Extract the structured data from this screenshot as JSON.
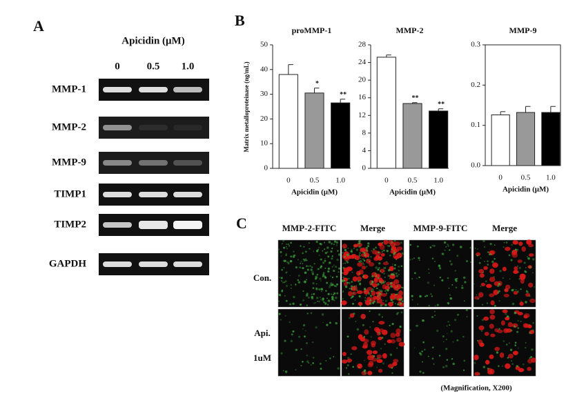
{
  "panel_a": {
    "label": "A",
    "treatment": "Apicidin (μM)",
    "lanes": [
      "0",
      "0.5",
      "1.0"
    ],
    "rows": [
      "MMP-1",
      "MMP-2",
      "MMP-9",
      "TIMP1",
      "TIMP2",
      "GAPDH"
    ]
  },
  "panel_b": {
    "label": "B",
    "ylabel": "Matrix metalloproteinase (ng/mL)"
  },
  "chart_data": [
    {
      "type": "bar",
      "title": "proMMP-1",
      "xlabel": "Apicidin (μM)",
      "categories": [
        "0",
        "0.5",
        "1.0"
      ],
      "values": [
        38,
        30.5,
        26.5
      ],
      "errors": [
        4,
        2,
        1.5
      ],
      "significance": [
        null,
        "*",
        "**"
      ],
      "colors": [
        "#ffffff",
        "#999999",
        "#000000"
      ],
      "ylim": [
        0,
        50
      ],
      "yticks": [
        0,
        10,
        20,
        30,
        40,
        50
      ]
    },
    {
      "type": "bar",
      "title": "MMP-2",
      "xlabel": "Apicidin (μM)",
      "categories": [
        "0",
        "0.5",
        "1.0"
      ],
      "values": [
        25.2,
        14.7,
        13.0
      ],
      "errors": [
        0.5,
        0.2,
        0.5
      ],
      "significance": [
        null,
        "**",
        "**"
      ],
      "colors": [
        "#ffffff",
        "#999999",
        "#000000"
      ],
      "ylim": [
        0,
        28
      ],
      "yticks": [
        0,
        4,
        8,
        12,
        16,
        20,
        24,
        28
      ]
    },
    {
      "type": "bar",
      "title": "MMP-9",
      "xlabel": "Apicidin (μM)",
      "categories": [
        "0",
        "0.5",
        "1.0"
      ],
      "values": [
        0.126,
        0.132,
        0.132
      ],
      "errors": [
        0.008,
        0.015,
        0.015
      ],
      "significance": [
        null,
        null,
        null
      ],
      "colors": [
        "#ffffff",
        "#999999",
        "#000000"
      ],
      "ylim": [
        0,
        0.3
      ],
      "yticks": [
        {
          "value": 0,
          "label": "0.0"
        },
        0.1,
        0.2,
        0.3
      ]
    }
  ],
  "panel_c": {
    "label": "C",
    "columns": [
      "MMP-2-FITC",
      "Merge",
      "MMP-9-FITC",
      "Merge"
    ],
    "rows": [
      "Con.",
      "Api."
    ],
    "row_note": "1uM",
    "caption": "(Magnification, X200)"
  }
}
